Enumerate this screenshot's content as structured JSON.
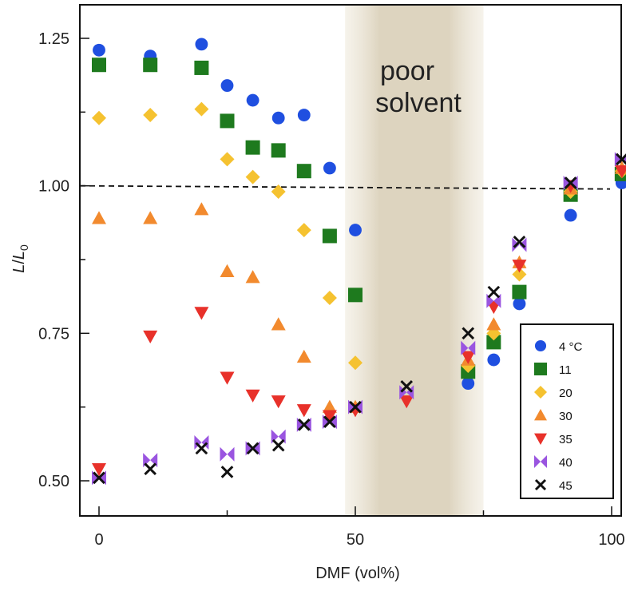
{
  "chart_data": {
    "type": "scatter",
    "xlabel": "DMF (vol%)",
    "ylabel": "L/L0",
    "ylabel_main": "L",
    "ylabel_slash": "/",
    "ylabel_base": "L",
    "ylabel_sub": "0",
    "xlim": [
      0,
      104
    ],
    "ylim": [
      0.44,
      1.31
    ],
    "xticks": [
      0,
      50,
      100
    ],
    "xtick_labels": [
      "0",
      "50",
      "100"
    ],
    "yticks": [
      0.5,
      0.75,
      1.0,
      1.25
    ],
    "ytick_labels": [
      "0.50",
      "0.75",
      "1.00",
      "1.25"
    ],
    "reference_line": 1.0,
    "poor_solvent_region": [
      48,
      75
    ],
    "annotation": [
      "poor",
      "solvent"
    ],
    "grid": false,
    "legend_position": "bottom-right",
    "series": [
      {
        "name": "4 °C",
        "marker": "circle",
        "color": "#1f4fe0",
        "x": [
          0,
          10,
          20,
          25,
          30,
          35,
          40,
          45,
          50,
          72,
          77,
          82,
          92,
          102
        ],
        "y": [
          1.23,
          1.22,
          1.24,
          1.17,
          1.145,
          1.115,
          1.12,
          1.03,
          0.925,
          0.665,
          0.705,
          0.8,
          0.95,
          1.005
        ]
      },
      {
        "name": "11",
        "marker": "square",
        "color": "#1e7a1e",
        "x": [
          0,
          10,
          20,
          25,
          30,
          35,
          40,
          45,
          50,
          72,
          77,
          82,
          92,
          102
        ],
        "y": [
          1.205,
          1.205,
          1.2,
          1.11,
          1.065,
          1.06,
          1.025,
          0.915,
          0.815,
          0.685,
          0.735,
          0.82,
          0.985,
          1.02
        ]
      },
      {
        "name": "20",
        "marker": "diamond",
        "color": "#f5c230",
        "x": [
          0,
          10,
          20,
          25,
          30,
          35,
          40,
          45,
          50,
          72,
          77,
          82,
          92,
          102
        ],
        "y": [
          1.115,
          1.12,
          1.13,
          1.045,
          1.015,
          0.99,
          0.925,
          0.81,
          0.7,
          0.695,
          0.75,
          0.85,
          0.99,
          1.025
        ]
      },
      {
        "name": "30",
        "marker": "triangle-up",
        "color": "#f28a2e",
        "x": [
          0,
          10,
          20,
          25,
          30,
          35,
          40,
          45,
          50,
          72,
          77,
          82,
          92,
          102
        ],
        "y": [
          0.945,
          0.945,
          0.96,
          0.855,
          0.845,
          0.765,
          0.71,
          0.625,
          0.625,
          0.705,
          0.765,
          0.87,
          0.995,
          1.03
        ]
      },
      {
        "name": "35",
        "marker": "triangle-down",
        "color": "#e8312a",
        "x": [
          0,
          10,
          20,
          25,
          30,
          35,
          40,
          45,
          50,
          60,
          72,
          77,
          82,
          92,
          102
        ],
        "y": [
          0.52,
          0.745,
          0.785,
          0.675,
          0.645,
          0.635,
          0.62,
          0.61,
          0.62,
          0.635,
          0.71,
          0.795,
          0.865,
          1.0,
          1.025
        ]
      },
      {
        "name": "40",
        "marker": "bowtie",
        "color": "#9a55e0",
        "x": [
          0,
          10,
          20,
          25,
          30,
          35,
          40,
          45,
          50,
          60,
          72,
          77,
          82,
          92,
          102
        ],
        "y": [
          0.505,
          0.535,
          0.565,
          0.545,
          0.555,
          0.575,
          0.595,
          0.6,
          0.625,
          0.65,
          0.725,
          0.805,
          0.9,
          1.005,
          1.045
        ]
      },
      {
        "name": "45",
        "marker": "x",
        "color": "#111111",
        "x": [
          0,
          10,
          20,
          25,
          30,
          35,
          40,
          45,
          50,
          60,
          72,
          77,
          82,
          92,
          102
        ],
        "y": [
          0.505,
          0.52,
          0.555,
          0.515,
          0.555,
          0.56,
          0.595,
          0.6,
          0.625,
          0.66,
          0.75,
          0.82,
          0.905,
          1.005,
          1.045
        ]
      }
    ]
  }
}
